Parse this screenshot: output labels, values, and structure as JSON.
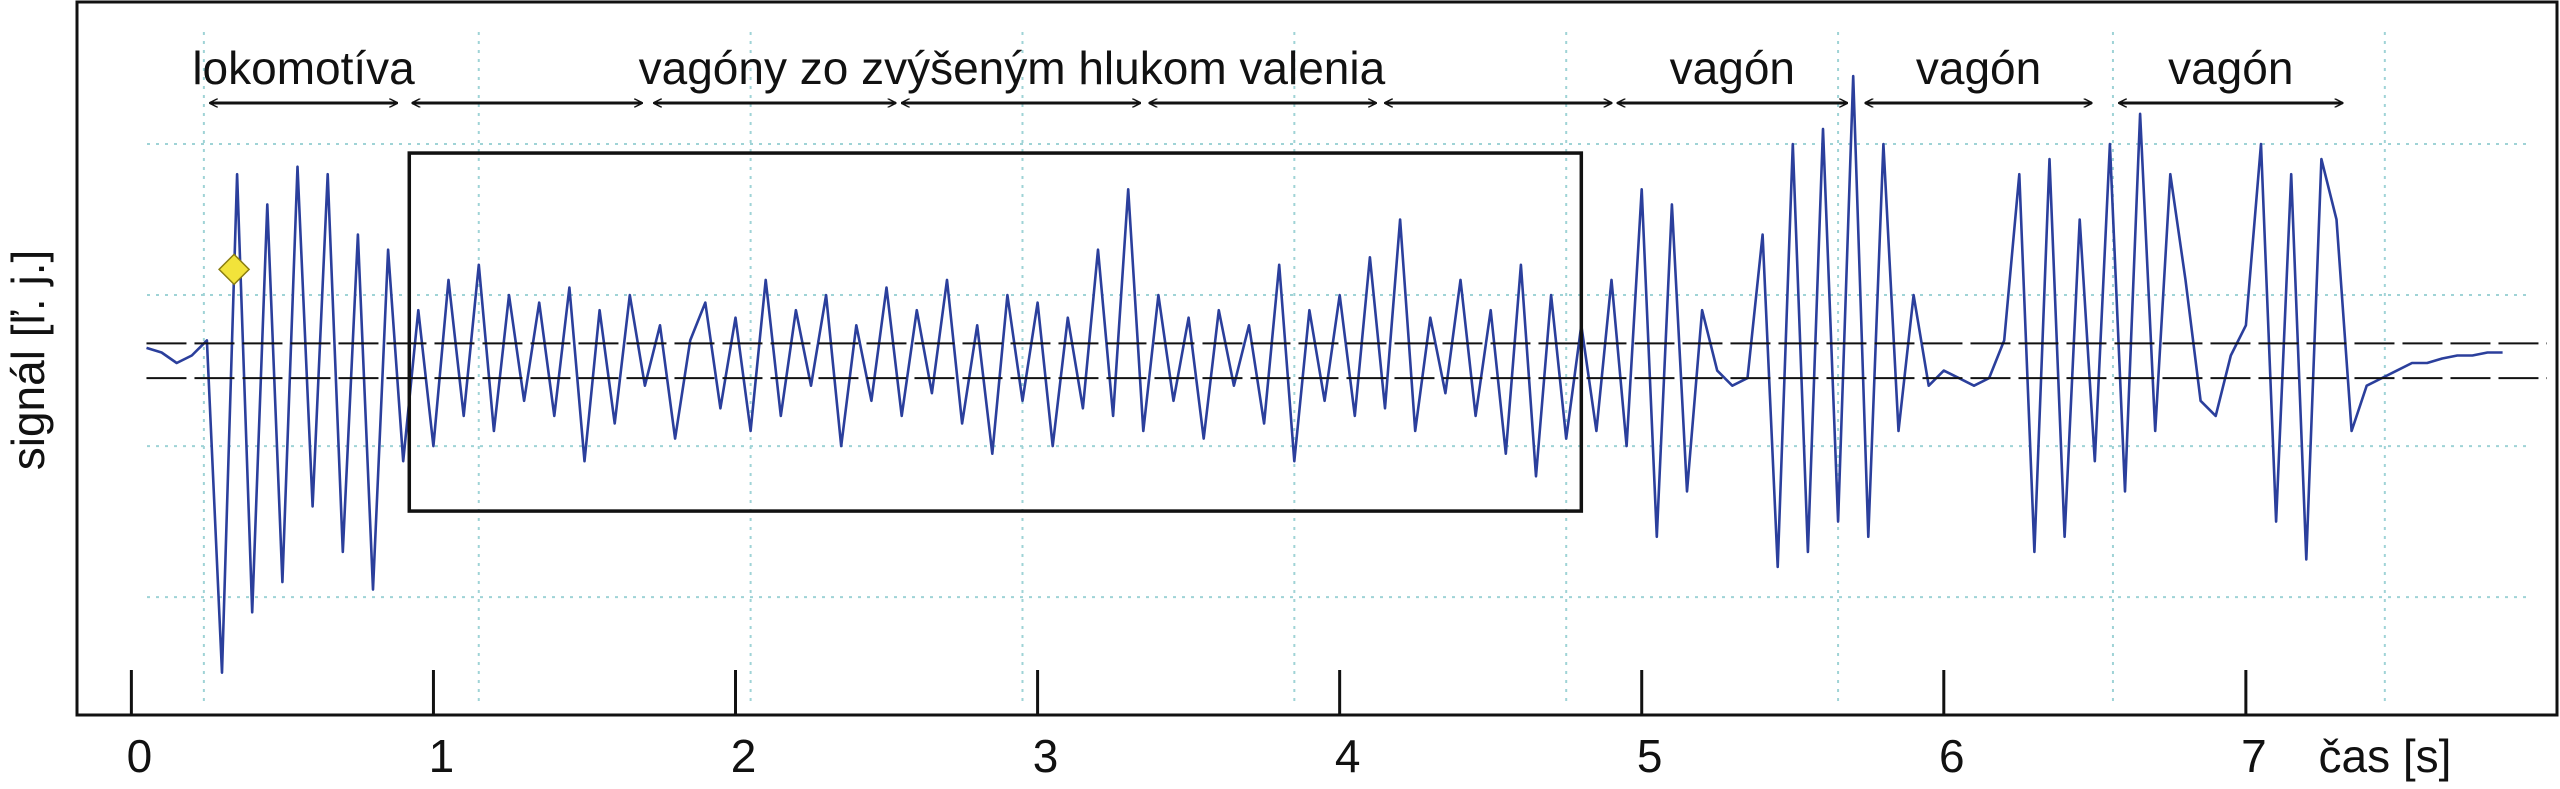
{
  "chart_data": {
    "type": "line",
    "xlabel": "čas [s]",
    "ylabel": "signál [ľ. j.]",
    "xlim": [
      -0.18,
      8.03
    ],
    "ylim": [
      -2.28,
      2.44
    ],
    "xticks": [
      0,
      1,
      2,
      3,
      4,
      5,
      6,
      7
    ],
    "xgrid": [
      0.24,
      1.15,
      2.05,
      2.95,
      3.85,
      4.75,
      5.65,
      6.56,
      7.46
    ],
    "ygrid": [
      -1.5,
      -0.5,
      0.5,
      1.5
    ],
    "thresholds": [
      0.18,
      -0.05
    ],
    "box": {
      "x": [
        0.92,
        4.8
      ],
      "y": [
        -0.93,
        1.44
      ]
    },
    "marker": {
      "x": 0.34,
      "y": 0.67,
      "color": "#f2e33a"
    },
    "annotations": [
      {
        "label": "lokomotíva",
        "spans": [
          [
            0.26,
            0.88
          ]
        ]
      },
      {
        "label": "vagóny zo zvýšeným hlukom valenia",
        "spans": [
          [
            0.93,
            1.69
          ],
          [
            1.73,
            2.53
          ],
          [
            2.55,
            3.34
          ],
          [
            3.37,
            4.12
          ],
          [
            4.15,
            4.9
          ]
        ]
      },
      {
        "label": "vagón",
        "spans": [
          [
            4.92,
            5.68
          ]
        ]
      },
      {
        "label": "vagón",
        "spans": [
          [
            5.74,
            6.49
          ]
        ]
      },
      {
        "label": "vagón",
        "spans": [
          [
            6.58,
            7.32
          ]
        ]
      }
    ],
    "series": [
      {
        "color": "#2b3f9c",
        "x": [
          0.05,
          0.1,
          0.15,
          0.2,
          0.25,
          0.3,
          0.35,
          0.4,
          0.45,
          0.5,
          0.55,
          0.6,
          0.65,
          0.7,
          0.75,
          0.8,
          0.85,
          0.9,
          0.95,
          1.0,
          1.05,
          1.1,
          1.15,
          1.2,
          1.25,
          1.3,
          1.35,
          1.4,
          1.45,
          1.5,
          1.55,
          1.6,
          1.65,
          1.7,
          1.75,
          1.8,
          1.85,
          1.9,
          1.95,
          2.0,
          2.05,
          2.1,
          2.15,
          2.2,
          2.25,
          2.3,
          2.35,
          2.4,
          2.45,
          2.5,
          2.55,
          2.6,
          2.65,
          2.7,
          2.75,
          2.8,
          2.85,
          2.9,
          2.95,
          3.0,
          3.05,
          3.1,
          3.15,
          3.2,
          3.25,
          3.3,
          3.35,
          3.4,
          3.45,
          3.5,
          3.55,
          3.6,
          3.65,
          3.7,
          3.75,
          3.8,
          3.85,
          3.9,
          3.95,
          4.0,
          4.05,
          4.1,
          4.15,
          4.2,
          4.25,
          4.3,
          4.35,
          4.4,
          4.45,
          4.5,
          4.55,
          4.6,
          4.65,
          4.7,
          4.75,
          4.8,
          4.85,
          4.9,
          4.95,
          5.0,
          5.05,
          5.1,
          5.15,
          5.2,
          5.25,
          5.3,
          5.35,
          5.4,
          5.45,
          5.5,
          5.55,
          5.6,
          5.65,
          5.7,
          5.75,
          5.8,
          5.85,
          5.9,
          5.95,
          6.0,
          6.05,
          6.1,
          6.15,
          6.2,
          6.25,
          6.3,
          6.35,
          6.4,
          6.45,
          6.5,
          6.55,
          6.6,
          6.65,
          6.7,
          6.75,
          6.8,
          6.85,
          6.9,
          6.95,
          7.0,
          7.05,
          7.1,
          7.15,
          7.2,
          7.25,
          7.3,
          7.35,
          7.4,
          7.45,
          7.5,
          7.55,
          7.6,
          7.65,
          7.7,
          7.75,
          7.8,
          7.85
        ],
        "values": [
          0.15,
          0.12,
          0.05,
          0.1,
          0.2,
          -2.0,
          1.3,
          -1.6,
          1.1,
          -1.4,
          1.35,
          -0.9,
          1.3,
          -1.2,
          0.9,
          -1.45,
          0.8,
          -0.6,
          0.4,
          -0.5,
          0.6,
          -0.3,
          0.7,
          -0.4,
          0.5,
          -0.2,
          0.45,
          -0.3,
          0.55,
          -0.6,
          0.4,
          -0.35,
          0.5,
          -0.1,
          0.3,
          -0.45,
          0.2,
          0.45,
          -0.25,
          0.35,
          -0.4,
          0.6,
          -0.3,
          0.4,
          -0.1,
          0.5,
          -0.5,
          0.3,
          -0.2,
          0.55,
          -0.3,
          0.4,
          -0.15,
          0.6,
          -0.35,
          0.3,
          -0.55,
          0.5,
          -0.2,
          0.45,
          -0.5,
          0.35,
          -0.25,
          0.8,
          -0.3,
          1.2,
          -0.4,
          0.5,
          -0.2,
          0.35,
          -0.45,
          0.4,
          -0.1,
          0.3,
          -0.35,
          0.7,
          -0.6,
          0.4,
          -0.2,
          0.5,
          -0.3,
          0.75,
          -0.25,
          1.0,
          -0.4,
          0.35,
          -0.15,
          0.6,
          -0.3,
          0.4,
          -0.55,
          0.7,
          -0.7,
          0.5,
          -0.45,
          0.3,
          -0.4,
          0.6,
          -0.5,
          1.2,
          -1.1,
          1.1,
          -0.8,
          0.4,
          0.0,
          -0.1,
          -0.05,
          0.9,
          -1.3,
          1.5,
          -1.2,
          1.6,
          -1.0,
          1.95,
          -1.1,
          1.5,
          -0.4,
          0.5,
          -0.1,
          0.0,
          -0.05,
          -0.1,
          -0.05,
          0.2,
          1.3,
          -1.2,
          1.4,
          -1.1,
          1.0,
          -0.6,
          1.5,
          -0.8,
          1.7,
          -0.4,
          1.3,
          0.6,
          -0.2,
          -0.3,
          0.1,
          0.3,
          1.5,
          -1.0,
          1.3,
          -1.25,
          1.4,
          1.0,
          -0.4,
          -0.1,
          -0.05,
          0.0,
          0.05,
          0.05,
          0.08,
          0.1,
          0.1,
          0.12,
          0.12
        ]
      }
    ]
  }
}
